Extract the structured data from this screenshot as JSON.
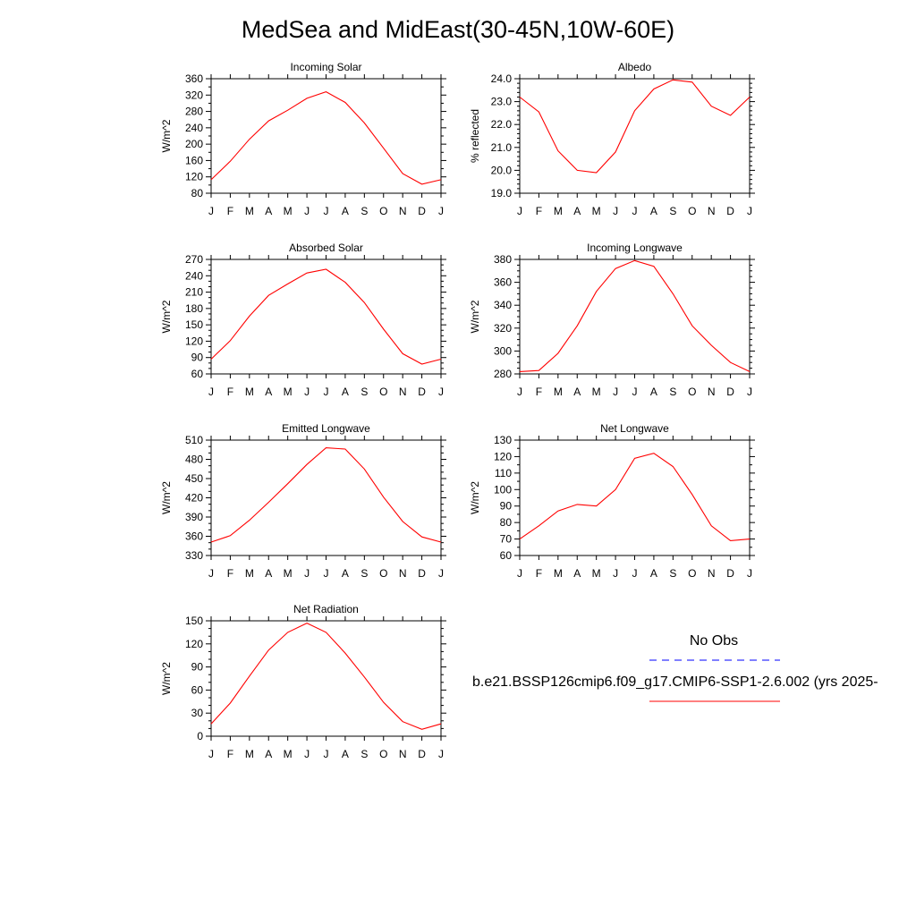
{
  "title": "MedSea and MidEast(30-45N,10W-60E)",
  "colors": {
    "model": "#ff0000",
    "obs": "#0000ff",
    "axis": "#000000"
  },
  "legend": {
    "obs_label": "No Obs",
    "model_label": "b.e21.BSSP126cmip6.f09_g17.CMIP6-SSP1-2.6.002 (yrs 2025-"
  },
  "chart_data": [
    {
      "type": "line",
      "title": "Incoming Solar",
      "ylabel": "W/m^2",
      "categories": [
        "J",
        "F",
        "M",
        "A",
        "M",
        "J",
        "J",
        "A",
        "S",
        "O",
        "N",
        "D",
        "J"
      ],
      "ylim": [
        80,
        360
      ],
      "yticks": [
        80,
        120,
        160,
        200,
        240,
        280,
        320,
        360
      ],
      "ytick_decimals": 0,
      "minor_per_major": 2,
      "series": [
        {
          "values": [
            113,
            158,
            212,
            257,
            283,
            312,
            328,
            302,
            252,
            190,
            128,
            102,
            113
          ]
        }
      ]
    },
    {
      "type": "line",
      "title": "Albedo",
      "ylabel": "% reflected",
      "categories": [
        "J",
        "F",
        "M",
        "A",
        "M",
        "J",
        "J",
        "A",
        "S",
        "O",
        "N",
        "D",
        "J"
      ],
      "ylim": [
        19.0,
        24.0
      ],
      "yticks": [
        19.0,
        20.0,
        21.0,
        22.0,
        23.0,
        24.0
      ],
      "ytick_decimals": 1,
      "minor_per_major": 5,
      "series": [
        {
          "values": [
            23.2,
            22.55,
            20.85,
            20.0,
            19.9,
            20.8,
            22.6,
            23.55,
            23.95,
            23.85,
            22.8,
            22.4,
            23.2
          ]
        }
      ]
    },
    {
      "type": "line",
      "title": "Absorbed Solar",
      "ylabel": "W/m^2",
      "categories": [
        "J",
        "F",
        "M",
        "A",
        "M",
        "J",
        "J",
        "A",
        "S",
        "O",
        "N",
        "D",
        "J"
      ],
      "ylim": [
        60,
        270
      ],
      "yticks": [
        60,
        90,
        120,
        150,
        180,
        210,
        240,
        270
      ],
      "ytick_decimals": 0,
      "minor_per_major": 3,
      "series": [
        {
          "values": [
            87,
            121,
            166,
            204,
            225,
            245,
            252,
            228,
            191,
            142,
            97,
            78,
            87
          ]
        }
      ]
    },
    {
      "type": "line",
      "title": "Incoming Longwave",
      "ylabel": "W/m^2",
      "categories": [
        "J",
        "F",
        "M",
        "A",
        "M",
        "J",
        "J",
        "A",
        "S",
        "O",
        "N",
        "D",
        "J"
      ],
      "ylim": [
        280,
        380
      ],
      "yticks": [
        280,
        300,
        320,
        340,
        360,
        380
      ],
      "ytick_decimals": 0,
      "minor_per_major": 4,
      "series": [
        {
          "values": [
            282,
            283,
            298,
            322,
            352,
            372,
            379,
            374,
            350,
            322,
            305,
            290,
            282
          ]
        }
      ]
    },
    {
      "type": "line",
      "title": "Emitted Longwave",
      "ylabel": "W/m^2",
      "categories": [
        "J",
        "F",
        "M",
        "A",
        "M",
        "J",
        "J",
        "A",
        "S",
        "O",
        "N",
        "D",
        "J"
      ],
      "ylim": [
        330,
        510
      ],
      "yticks": [
        330,
        360,
        390,
        420,
        450,
        480,
        510
      ],
      "ytick_decimals": 0,
      "minor_per_major": 3,
      "series": [
        {
          "values": [
            351,
            361,
            385,
            413,
            442,
            472,
            498,
            496,
            465,
            421,
            383,
            359,
            351
          ]
        }
      ]
    },
    {
      "type": "line",
      "title": "Net Longwave",
      "ylabel": "W/m^2",
      "categories": [
        "J",
        "F",
        "M",
        "A",
        "M",
        "J",
        "J",
        "A",
        "S",
        "O",
        "N",
        "D",
        "J"
      ],
      "ylim": [
        60,
        130
      ],
      "yticks": [
        60,
        70,
        80,
        90,
        100,
        110,
        120,
        130
      ],
      "ytick_decimals": 0,
      "minor_per_major": 2,
      "series": [
        {
          "values": [
            70,
            78,
            87,
            91,
            90,
            100,
            119,
            122,
            114,
            97,
            78,
            69,
            70
          ]
        }
      ]
    },
    {
      "type": "line",
      "title": "Net Radiation",
      "ylabel": "W/m^2",
      "categories": [
        "J",
        "F",
        "M",
        "A",
        "M",
        "J",
        "J",
        "A",
        "S",
        "O",
        "N",
        "D",
        "J"
      ],
      "ylim": [
        0,
        150
      ],
      "yticks": [
        0,
        30,
        60,
        90,
        120,
        150
      ],
      "ytick_decimals": 0,
      "minor_per_major": 3,
      "series": [
        {
          "values": [
            16,
            43,
            78,
            112,
            135,
            147,
            135,
            108,
            77,
            44,
            19,
            9,
            16
          ]
        }
      ]
    }
  ]
}
